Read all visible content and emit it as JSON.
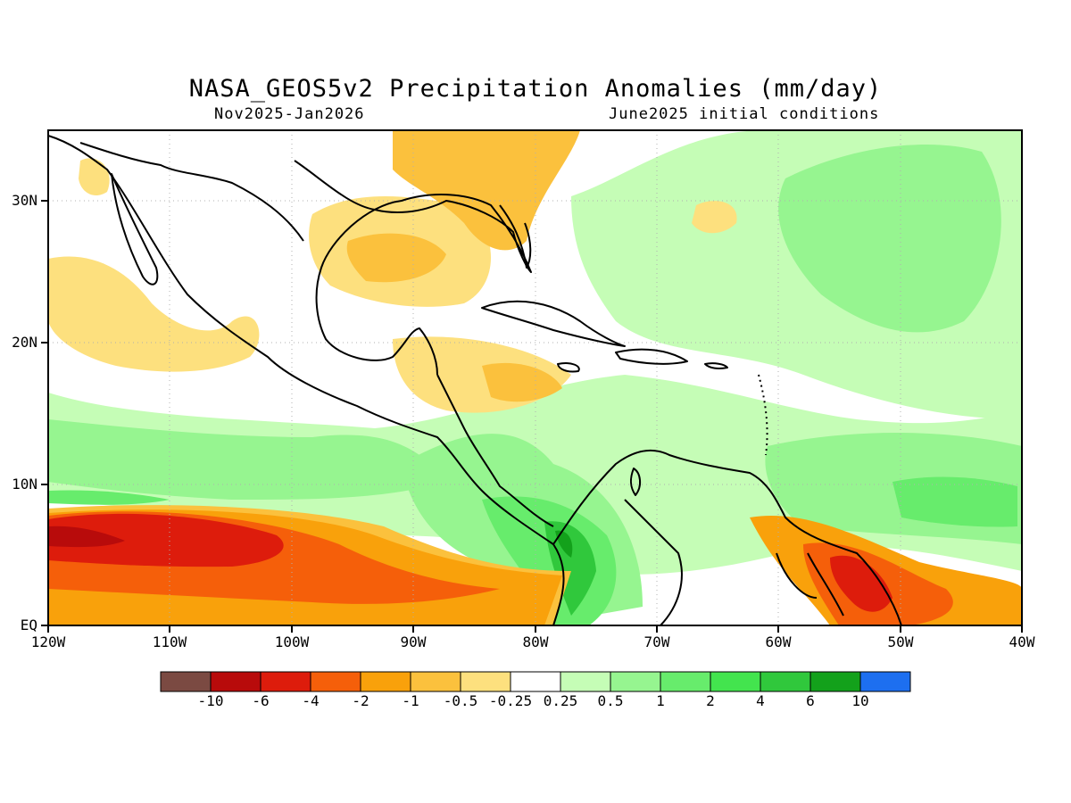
{
  "title": "NASA_GEOS5v2 Precipitation Anomalies (mm/day)",
  "subtitle_left": "Nov2025-Jan2026",
  "subtitle_right": "June2025 initial conditions",
  "map": {
    "lon_range": [
      "120W",
      "40W"
    ],
    "lat_range": [
      "EQ",
      "35N"
    ],
    "x_ticks": [
      "120W",
      "110W",
      "100W",
      "90W",
      "80W",
      "70W",
      "60W",
      "50W",
      "40W"
    ],
    "y_ticks": [
      "EQ",
      "10N",
      "20N",
      "30N"
    ],
    "grid": "dotted"
  },
  "colorbar": {
    "labels": [
      "-10",
      "-6",
      "-4",
      "-2",
      "-1",
      "-0.5",
      "-0.25",
      "0.25",
      "0.5",
      "1",
      "2",
      "4",
      "6",
      "10"
    ],
    "colors": [
      "#7b4a42",
      "#b80b0b",
      "#dd1c0c",
      "#f55f0a",
      "#f9a10b",
      "#fbc13d",
      "#fde07e",
      "#ffffff",
      "#c5fdb6",
      "#96f590",
      "#67ec6c",
      "#43e44e",
      "#30c83c",
      "#13a11b",
      "#1d6ff0"
    ]
  },
  "regions": [
    {
      "name": "equatorial-pacific-dry-band",
      "level": -2
    },
    {
      "name": "equatorial-pacific-dry-core",
      "level": -6
    },
    {
      "name": "guianas-dry",
      "level": -4
    },
    {
      "name": "gulf-of-mexico-dry",
      "level": -1
    },
    {
      "name": "itcz-wet-band",
      "level": 1
    },
    {
      "name": "colombia-pacific-wet",
      "level": 4
    },
    {
      "name": "atlantic-subtropical-wet",
      "level": 1
    }
  ]
}
